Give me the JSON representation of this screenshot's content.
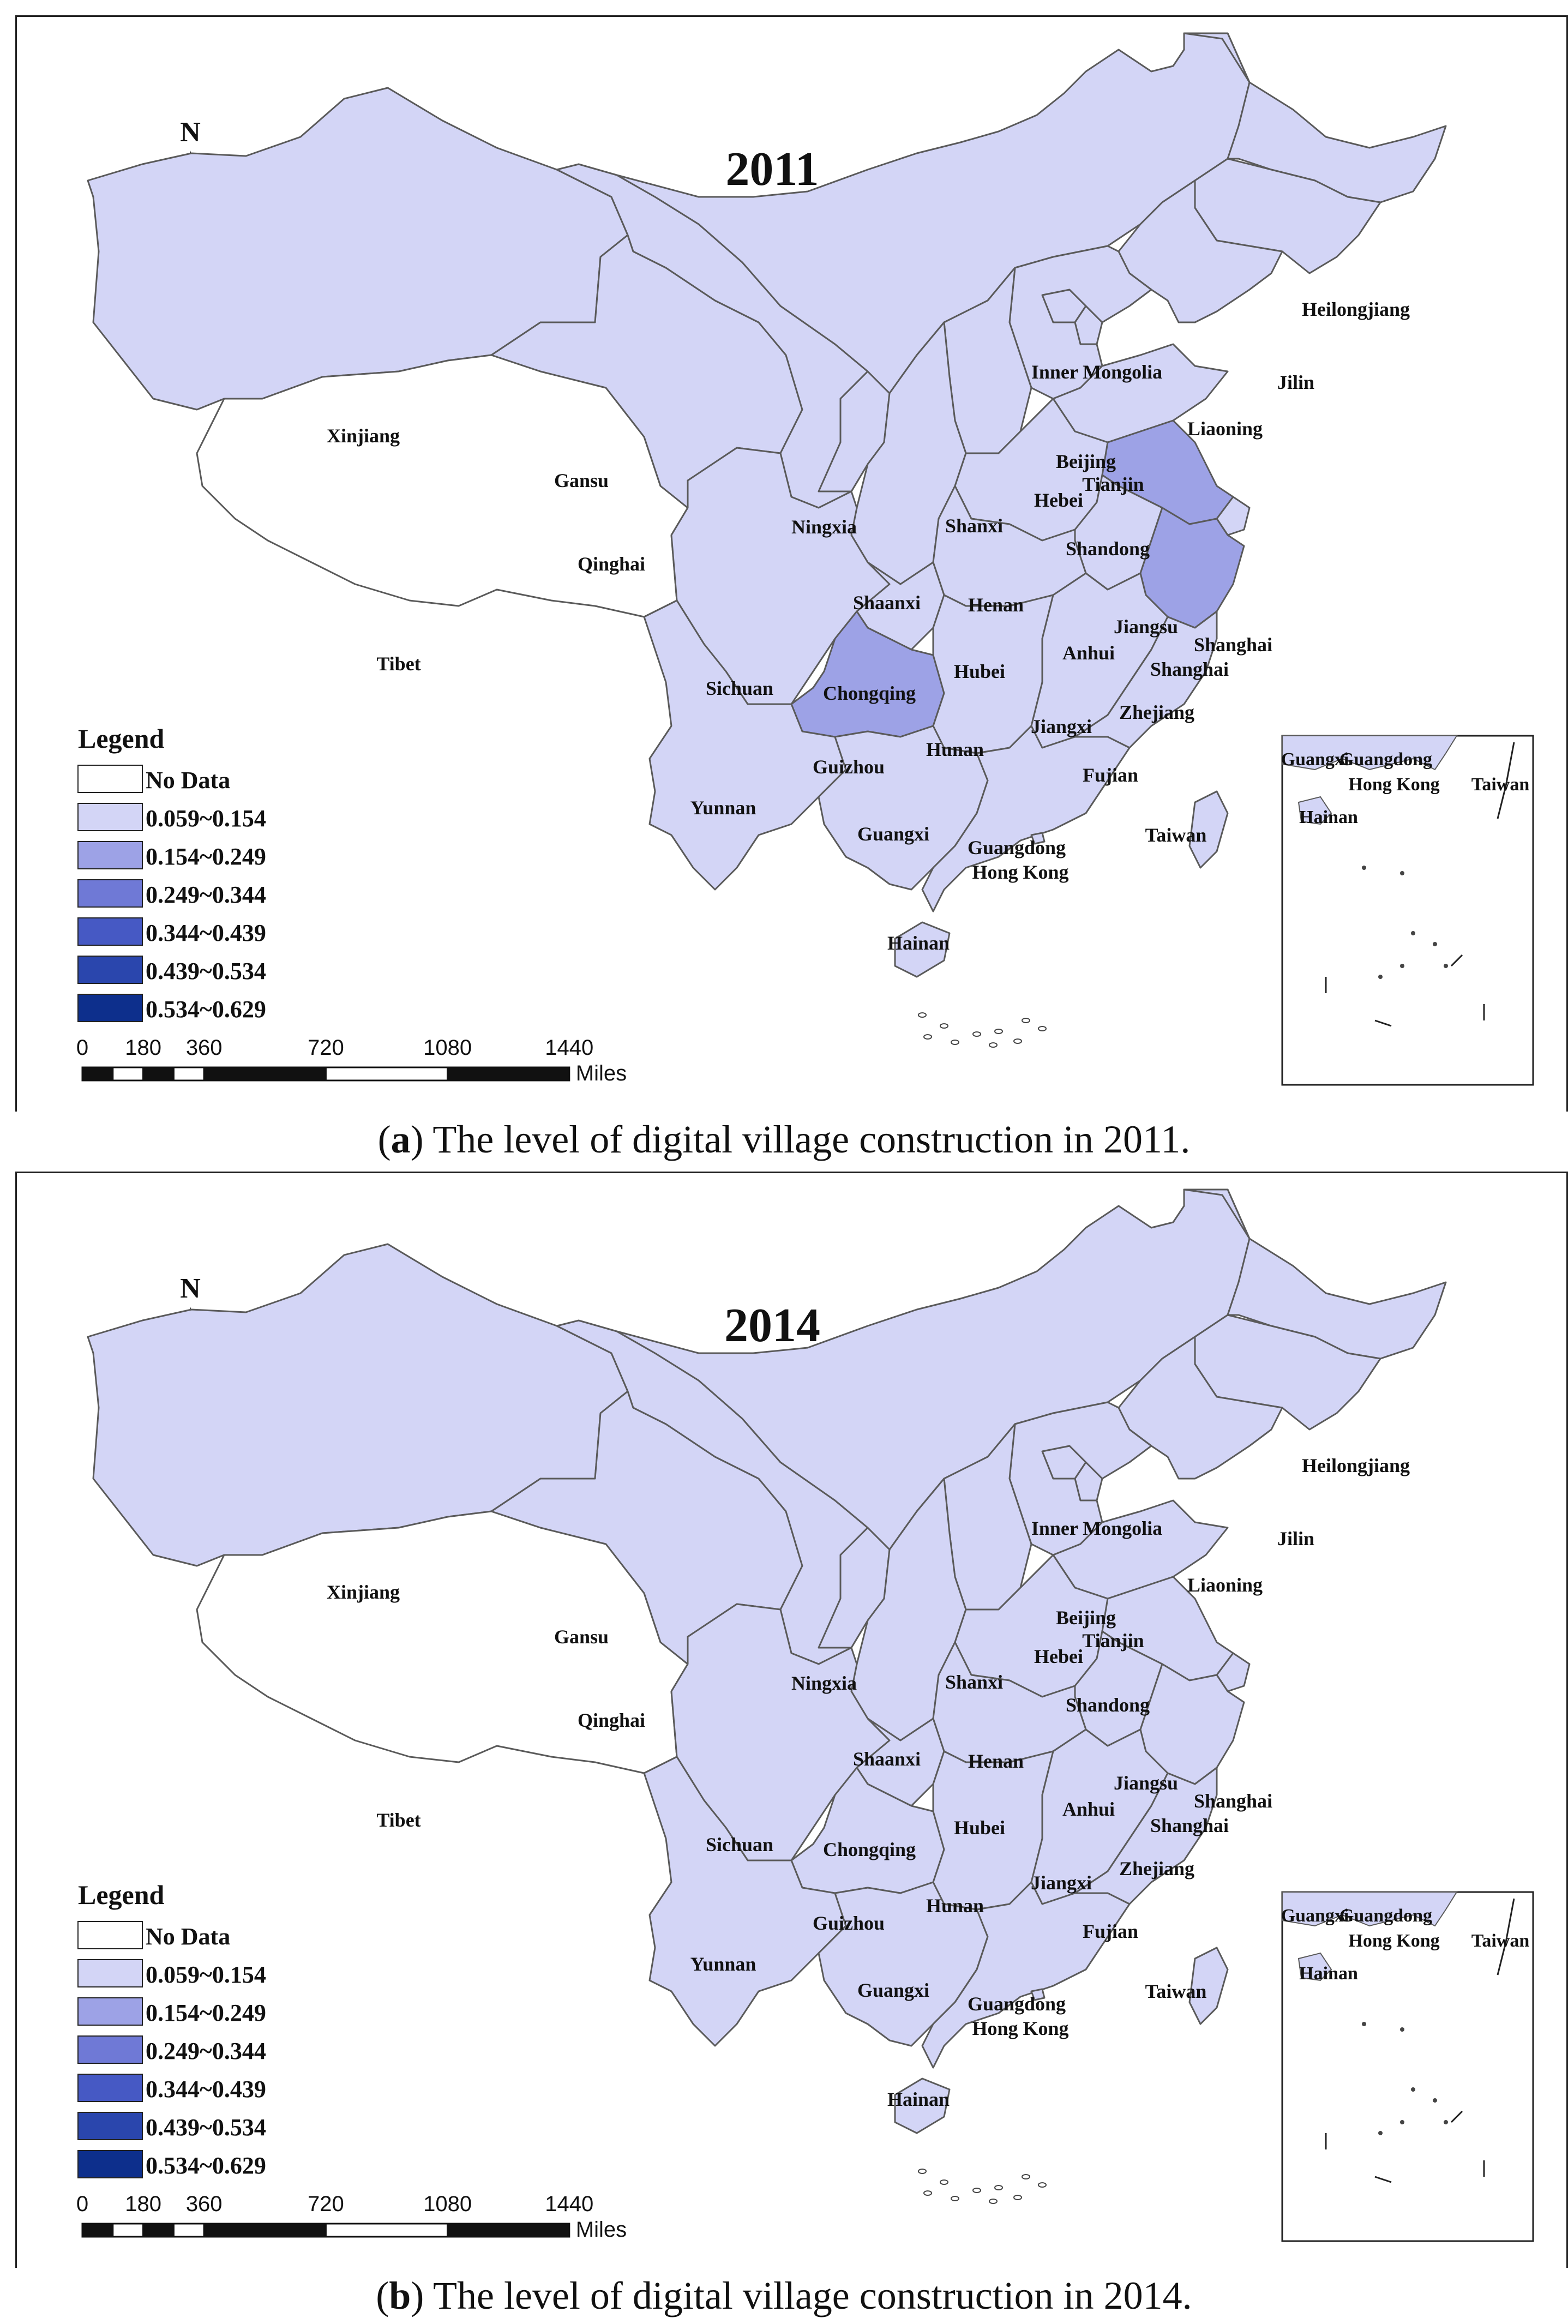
{
  "colors": {
    "no_data": "#ffffff",
    "c1": "#d3d5f6",
    "c2": "#9da2e6",
    "c3": "#6f79d6",
    "c4": "#4659c4",
    "c5": "#2a46ad",
    "c6": "#0d2f8c",
    "border": "#5a5a5a"
  },
  "legend": {
    "title": "Legend",
    "classes": [
      {
        "label": "No Data",
        "color": "#ffffff"
      },
      {
        "label": "0.059~0.154",
        "color": "#d3d5f6"
      },
      {
        "label": "0.154~0.249",
        "color": "#9da2e6"
      },
      {
        "label": "0.249~0.344",
        "color": "#6f79d6"
      },
      {
        "label": "0.344~0.439",
        "color": "#4659c4"
      },
      {
        "label": "0.439~0.534",
        "color": "#2a46ad"
      },
      {
        "label": "0.534~0.629",
        "color": "#0d2f8c"
      }
    ]
  },
  "north_label": "N",
  "scalebar": {
    "ticks": [
      "0",
      "180",
      "360",
      "720",
      "1080",
      "1440"
    ],
    "unit": "Miles"
  },
  "inset_labels": [
    "Guangxi",
    "Guangdong",
    "Hong Kong",
    "Taiwan",
    "Hainan"
  ],
  "panels": [
    {
      "id": "a",
      "year": "2011",
      "caption_letter": "a",
      "caption_text": "The level of digital village construction in 2011.",
      "highlight_class": {
        "Jiangsu": "c2",
        "Zhejiang": "c2",
        "Guizhou": "c2"
      }
    },
    {
      "id": "b",
      "year": "2014",
      "caption_letter": "b",
      "caption_text": "The level of digital village construction in 2014.",
      "highlight_class": {}
    }
  ],
  "provinces": [
    "Xinjiang",
    "Tibet",
    "Qinghai",
    "Gansu",
    "Ningxia",
    "Inner Mongolia",
    "Heilongjiang",
    "Jilin",
    "Liaoning",
    "Beijing",
    "Tianjin",
    "Hebei",
    "Shanxi",
    "Shaanxi",
    "Shandong",
    "Henan",
    "Jiangsu",
    "Anhui",
    "Shanghai",
    "Zhejiang",
    "Hubei",
    "Sichuan",
    "Chongqing",
    "Guizhou",
    "Hunan",
    "Jiangxi",
    "Fujian",
    "Yunnan",
    "Guangxi",
    "Guangdong",
    "Hong Kong",
    "Taiwan",
    "Hainan"
  ]
}
